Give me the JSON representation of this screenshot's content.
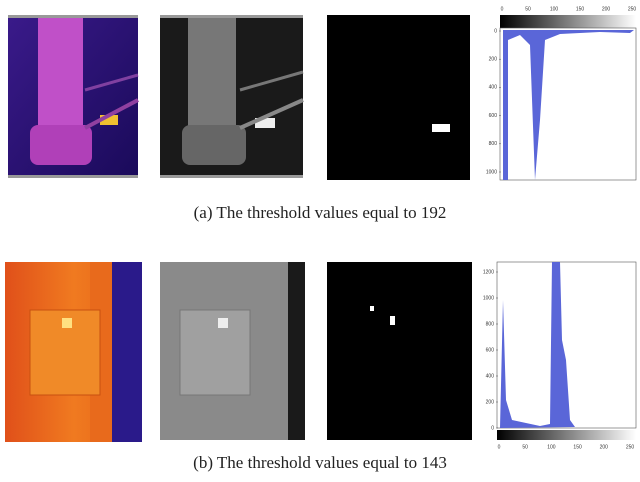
{
  "figure": {
    "rows": [
      {
        "caption": "(a) The threshold values equal to 192",
        "histogram": {
          "xticks": [
            0,
            50,
            100,
            150,
            200,
            250
          ],
          "yticks": [
            0,
            200,
            400,
            600,
            800,
            1000
          ]
        }
      },
      {
        "caption": "(b) The threshold values equal to 143",
        "histogram": {
          "xticks": [
            0,
            50,
            100,
            150,
            200,
            250
          ],
          "yticks": [
            0,
            200,
            400,
            600,
            800,
            1000,
            1200
          ]
        }
      }
    ]
  }
}
